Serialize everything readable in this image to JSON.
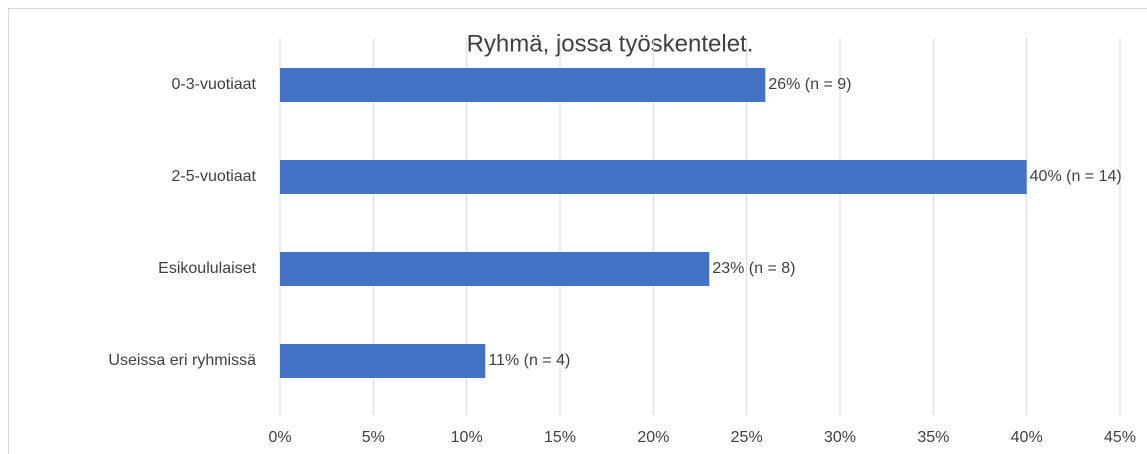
{
  "chart_data": {
    "type": "bar",
    "orientation": "horizontal",
    "title": "Ryhmä, jossa työskentelet.",
    "categories": [
      "0-3-vuotiaat",
      "2-5-vuotiaat",
      "Esikoululaiset",
      "Useissa eri ryhmissä"
    ],
    "values": [
      26,
      40,
      23,
      11
    ],
    "value_labels": [
      "26% (n = 9)",
      "40% (n = 14)",
      "23% (n = 8)",
      "11% (n = 4)"
    ],
    "color": "#4472c4",
    "xlim": [
      0,
      45
    ],
    "xticks": [
      {
        "value": 0,
        "label": "0%"
      },
      {
        "value": 5,
        "label": "5%"
      },
      {
        "value": 10,
        "label": "10%"
      },
      {
        "value": 15,
        "label": "15%"
      },
      {
        "value": 20,
        "label": "20%"
      },
      {
        "value": 25,
        "label": "25%"
      },
      {
        "value": 30,
        "label": "30%"
      },
      {
        "value": 35,
        "label": "35%"
      },
      {
        "value": 40,
        "label": "40%"
      },
      {
        "value": 45,
        "label": "45%"
      }
    ],
    "grid": true
  }
}
